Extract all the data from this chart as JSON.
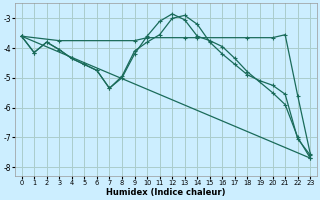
{
  "xlabel": "Humidex (Indice chaleur)",
  "bg_color": "#cceeff",
  "grid_color": "#aacccc",
  "line_color": "#1a6b5a",
  "xlim": [
    -0.5,
    23.5
  ],
  "ylim": [
    -8.3,
    -2.5
  ],
  "yticks": [
    -8,
    -7,
    -6,
    -5,
    -4,
    -3
  ],
  "xticks": [
    0,
    1,
    2,
    3,
    4,
    5,
    6,
    7,
    8,
    9,
    10,
    11,
    12,
    13,
    14,
    15,
    16,
    17,
    18,
    19,
    20,
    21,
    22,
    23
  ],
  "lines": [
    {
      "x": [
        0,
        1,
        2,
        3,
        4,
        5,
        6,
        7,
        8,
        9,
        10,
        11,
        12,
        13,
        14,
        15,
        16,
        17,
        18,
        20,
        21,
        22,
        23
      ],
      "y": [
        -3.6,
        -4.15,
        -3.8,
        -4.05,
        -4.35,
        -4.55,
        -4.75,
        -5.35,
        -5.0,
        -4.2,
        -3.6,
        -3.1,
        -2.85,
        -3.05,
        -3.6,
        -3.75,
        -3.95,
        -4.35,
        -4.8,
        -5.5,
        -5.9,
        -7.0,
        -7.7
      ]
    },
    {
      "x": [
        0,
        3,
        9,
        10,
        13,
        14,
        18,
        20,
        21,
        22,
        23
      ],
      "y": [
        -3.6,
        -3.75,
        -3.75,
        -3.65,
        -3.65,
        -3.65,
        -3.65,
        -3.65,
        -3.55,
        -5.6,
        -7.55
      ]
    },
    {
      "x": [
        0,
        1,
        2,
        3,
        4,
        5,
        6,
        7,
        8,
        9,
        10,
        11,
        12,
        13,
        14,
        15,
        16,
        17,
        18,
        19,
        20,
        21,
        22,
        23
      ],
      "y": [
        -3.6,
        -4.15,
        -3.8,
        -4.05,
        -4.35,
        -4.55,
        -4.75,
        -5.35,
        -4.95,
        -4.1,
        -3.8,
        -3.55,
        -3.0,
        -2.9,
        -3.2,
        -3.8,
        -4.2,
        -4.55,
        -4.9,
        -5.1,
        -5.25,
        -5.55,
        -7.05,
        -7.6
      ]
    },
    {
      "x": [
        0,
        23
      ],
      "y": [
        -3.6,
        -7.7
      ]
    }
  ]
}
